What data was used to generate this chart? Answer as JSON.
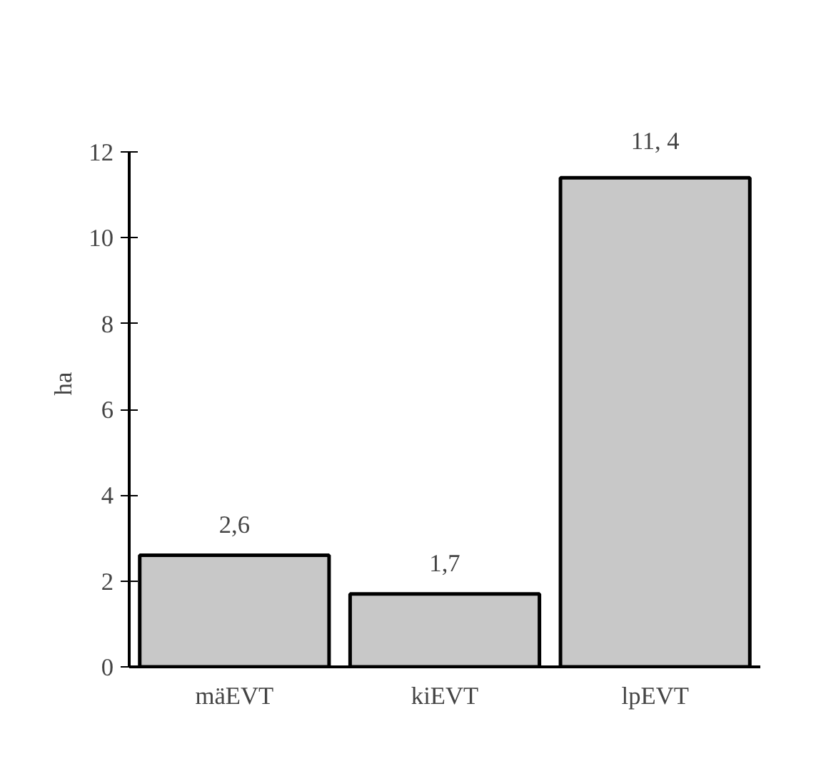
{
  "chart_data": {
    "type": "bar",
    "ylabel": "ha",
    "categories": [
      "mäEVT",
      "kiEVT",
      "lpEVT"
    ],
    "values": [
      2.6,
      1.7,
      11.4
    ],
    "value_labels": [
      "2,6",
      "1,7",
      "11, 4"
    ],
    "color": "#c8c8c8",
    "ylim": [
      0,
      12
    ],
    "yticks": [
      0,
      2,
      4,
      6,
      8,
      10,
      12
    ],
    "grid": false
  }
}
